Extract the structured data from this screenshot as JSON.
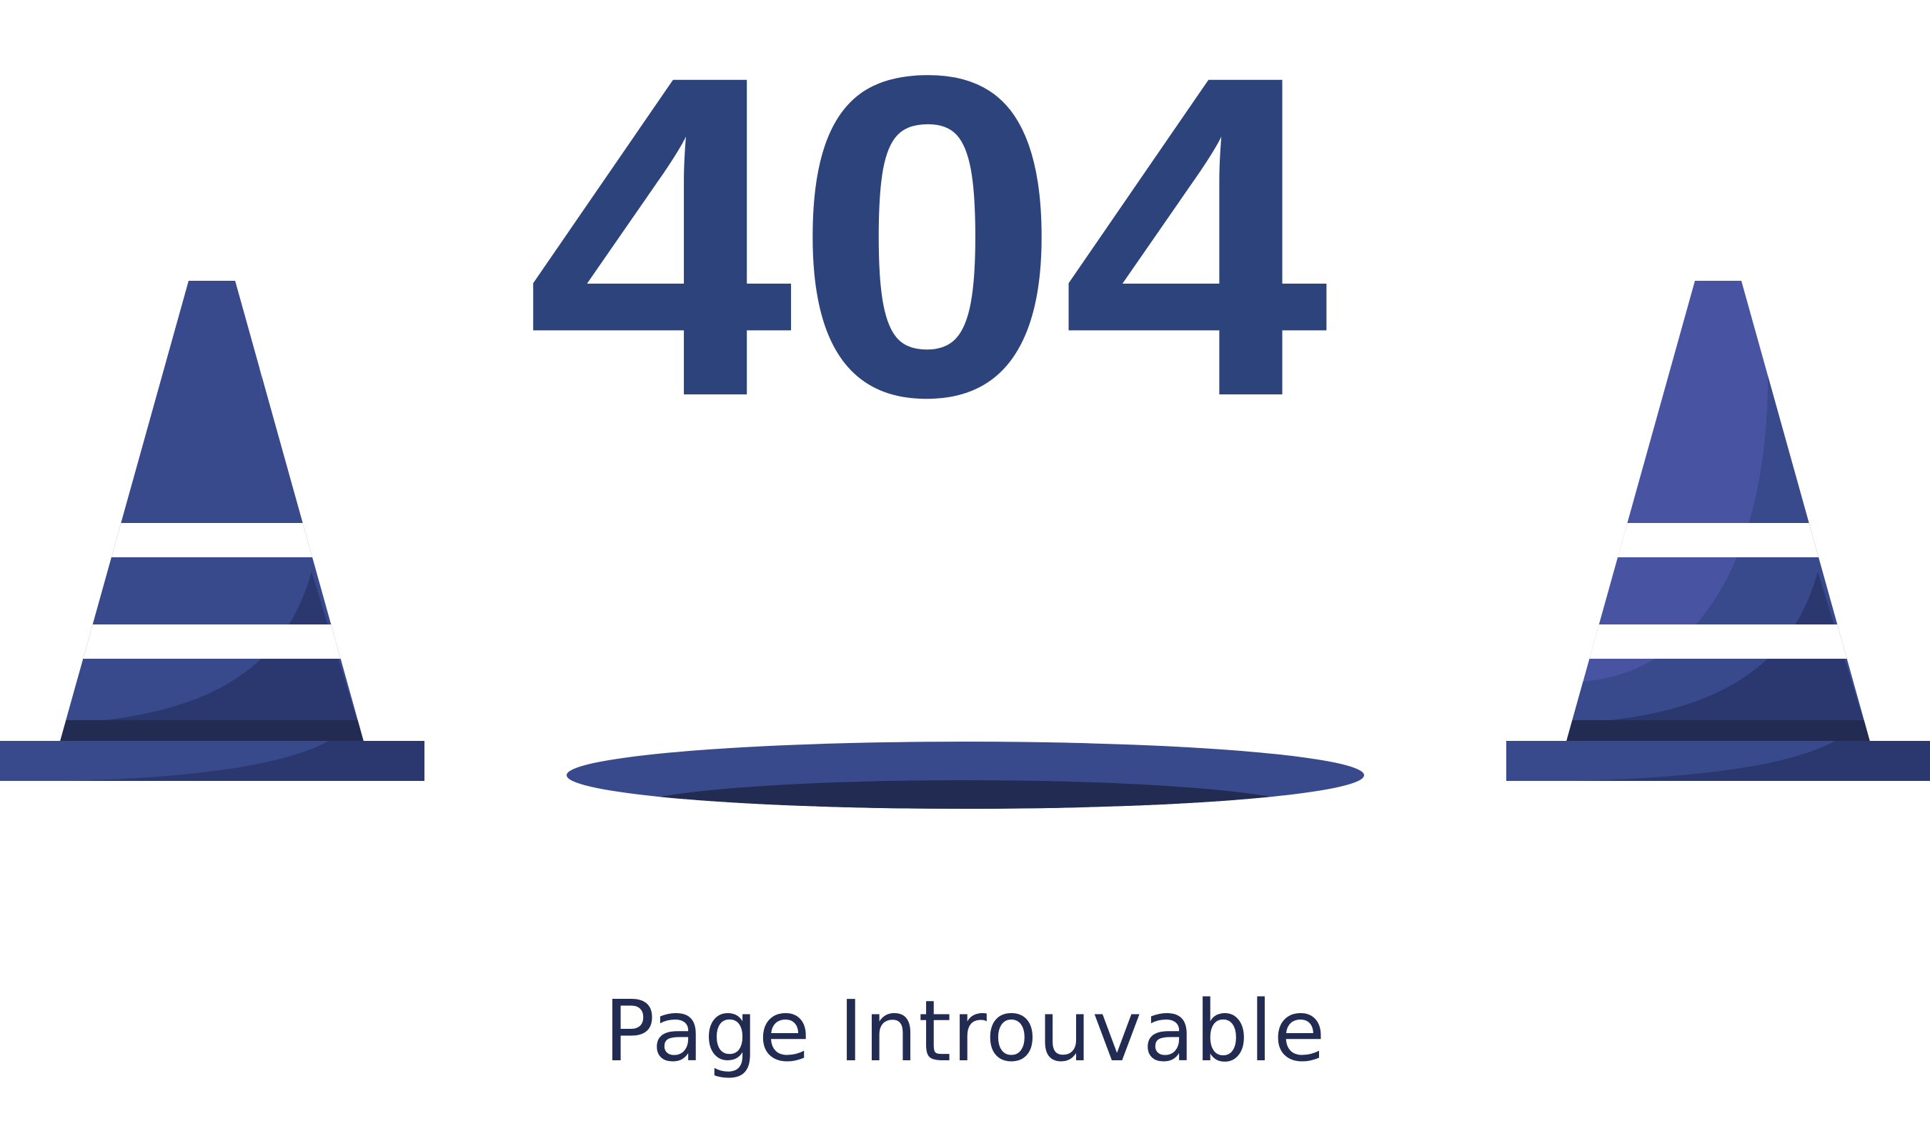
{
  "error": {
    "code": "404",
    "message": "Page Introuvable"
  },
  "colors": {
    "background": "#ffffff",
    "code_text": "#2c437c",
    "message_text": "#222b51",
    "cone_light": "#4854a1",
    "cone_mid": "#384a8b",
    "cone_dark": "#2b386f",
    "cone_darkest": "#222b51",
    "stripe": "#ffffff",
    "hole_top": "#384a8b",
    "hole_bottom": "#222b51"
  },
  "icons": {
    "left_cone": "traffic-cone-icon",
    "right_cone": "traffic-cone-icon",
    "hole": "manhole-icon"
  }
}
